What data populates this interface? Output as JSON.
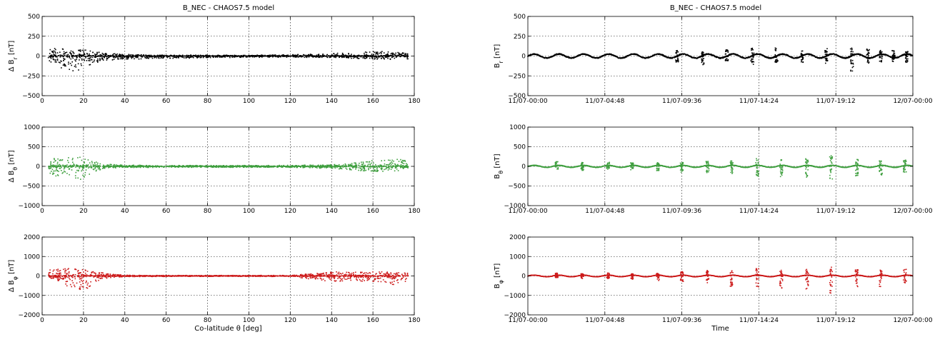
{
  "figure": {
    "left_title": "B_NEC - CHAOS7.5 model",
    "right_title": "B_NEC - CHAOS7.5 model"
  },
  "chart_data": [
    {
      "id": "dBr_vs_colat",
      "type": "scatter",
      "color": "#000000",
      "ylabel": "Δ B_r [nT]",
      "xlabel": "",
      "xlim": [
        0,
        180
      ],
      "ylim": [
        -500,
        500
      ],
      "xticks": [
        0,
        20,
        40,
        60,
        80,
        100,
        120,
        140,
        160,
        180
      ],
      "xticklabels": [
        "0",
        "20",
        "40",
        "60",
        "80",
        "100",
        "120",
        "140",
        "160",
        "180"
      ],
      "yticks": [
        -500,
        -250,
        0,
        250,
        500
      ],
      "yticklabels": [
        "−500",
        "−250",
        "0",
        "250",
        "500"
      ],
      "grid": true,
      "envelope_x": [
        3,
        6,
        10,
        15,
        20,
        25,
        30,
        40,
        60,
        80,
        100,
        120,
        140,
        150,
        160,
        170,
        177
      ],
      "envelope_hi": [
        80,
        100,
        110,
        105,
        90,
        60,
        40,
        20,
        10,
        10,
        10,
        15,
        30,
        50,
        60,
        55,
        30
      ],
      "envelope_lo": [
        -60,
        -110,
        -170,
        -200,
        -160,
        -100,
        -60,
        -40,
        -30,
        -20,
        -15,
        -15,
        -15,
        -30,
        -40,
        -50,
        -40
      ]
    },
    {
      "id": "dBtheta_vs_colat",
      "type": "scatter",
      "color": "#3f9f3f",
      "ylabel": "Δ B_θ [nT]",
      "xlabel": "",
      "xlim": [
        0,
        180
      ],
      "ylim": [
        -1000,
        1000
      ],
      "xticks": [
        0,
        20,
        40,
        60,
        80,
        100,
        120,
        140,
        160,
        180
      ],
      "xticklabels": [
        "0",
        "20",
        "40",
        "60",
        "80",
        "100",
        "120",
        "140",
        "160",
        "180"
      ],
      "yticks": [
        -1000,
        -500,
        0,
        500,
        1000
      ],
      "yticklabels": [
        "−1000",
        "−500",
        "0",
        "500",
        "1000"
      ],
      "grid": true,
      "envelope_x": [
        3,
        6,
        10,
        15,
        20,
        25,
        30,
        40,
        60,
        80,
        100,
        120,
        140,
        150,
        160,
        170,
        177
      ],
      "envelope_hi": [
        150,
        200,
        230,
        250,
        220,
        120,
        60,
        30,
        25,
        25,
        25,
        25,
        40,
        80,
        150,
        200,
        150
      ],
      "envelope_lo": [
        -200,
        -250,
        -250,
        -300,
        -350,
        -150,
        -50,
        -30,
        -25,
        -25,
        -25,
        -25,
        -50,
        -100,
        -150,
        -120,
        -80
      ]
    },
    {
      "id": "dBphi_vs_colat",
      "type": "scatter",
      "color": "#cc1a1a",
      "ylabel": "Δ B_φ [nT]",
      "xlabel": "Co-latitude θ [deg]",
      "xlim": [
        0,
        180
      ],
      "ylim": [
        -2000,
        2000
      ],
      "xticks": [
        0,
        20,
        40,
        60,
        80,
        100,
        120,
        140,
        160,
        180
      ],
      "xticklabels": [
        "0",
        "20",
        "40",
        "60",
        "80",
        "100",
        "120",
        "140",
        "160",
        "180"
      ],
      "yticks": [
        -2000,
        -1000,
        0,
        1000,
        2000
      ],
      "yticklabels": [
        "−2000",
        "−1000",
        "0",
        "1000",
        "2000"
      ],
      "grid": true,
      "envelope_x": [
        3,
        6,
        10,
        15,
        20,
        25,
        30,
        40,
        60,
        80,
        100,
        120,
        140,
        150,
        160,
        170,
        177
      ],
      "envelope_hi": [
        300,
        350,
        400,
        400,
        350,
        250,
        150,
        40,
        30,
        30,
        30,
        30,
        200,
        250,
        250,
        200,
        150
      ],
      "envelope_lo": [
        -100,
        -150,
        -400,
        -700,
        -850,
        -400,
        -150,
        -40,
        -30,
        -30,
        -30,
        -30,
        -300,
        -250,
        -300,
        -500,
        -400
      ]
    },
    {
      "id": "Br_vs_time",
      "type": "scatter",
      "color": "#000000",
      "ylabel": "B_r [nT]",
      "xlabel": "",
      "xlim": [
        0,
        24
      ],
      "ylim": [
        -500,
        500
      ],
      "xticks": [
        0,
        4.8,
        9.6,
        14.4,
        19.2,
        24
      ],
      "xticklabels": [
        "11/07-00:00",
        "11/07-04:48",
        "11/07-09:36",
        "11/07-14:24",
        "11/07-19:12",
        "12/07-00:00"
      ],
      "yticks": [
        -500,
        -250,
        0,
        250,
        500
      ],
      "yticklabels": [
        "−500",
        "−250",
        "0",
        "250",
        "500"
      ],
      "grid": true,
      "baseline_amplitude": 25,
      "orbit_period_hours": 1.55,
      "spike_times": [
        9.3,
        10.9,
        12.4,
        14.0,
        15.5,
        17.1,
        18.6,
        20.2,
        21.2,
        22.0,
        22.8,
        23.6
      ],
      "spike_hi": [
        70,
        60,
        90,
        100,
        110,
        100,
        110,
        100,
        90,
        70,
        80,
        60
      ],
      "spike_lo": [
        -90,
        -110,
        -60,
        -110,
        -90,
        -90,
        -100,
        -190,
        -90,
        -100,
        -70,
        -80
      ]
    },
    {
      "id": "Btheta_vs_time",
      "type": "scatter",
      "color": "#3f9f3f",
      "ylabel": "B_θ [nT]",
      "xlabel": "",
      "xlim": [
        0,
        24
      ],
      "ylim": [
        -1000,
        1000
      ],
      "xticks": [
        0,
        4.8,
        9.6,
        14.4,
        19.2,
        24
      ],
      "xticklabels": [
        "11/07-00:00",
        "11/07-04:48",
        "11/07-09:36",
        "11/07-14:24",
        "11/07-19:12",
        "12/07-00:00"
      ],
      "yticks": [
        -1000,
        -500,
        0,
        500,
        1000
      ],
      "yticklabels": [
        "−1000",
        "−500",
        "0",
        "500",
        "1000"
      ],
      "grid": true,
      "baseline_amplitude": 25,
      "orbit_period_hours": 1.55,
      "spike_times": [
        1.8,
        3.4,
        5.0,
        6.5,
        8.1,
        9.6,
        11.2,
        12.7,
        14.3,
        15.8,
        17.4,
        18.9,
        20.5,
        22.0,
        23.5
      ],
      "spike_hi": [
        120,
        100,
        110,
        90,
        100,
        120,
        130,
        150,
        200,
        220,
        200,
        280,
        180,
        150,
        160
      ],
      "spike_lo": [
        -90,
        -100,
        -80,
        -90,
        -110,
        -150,
        -180,
        -200,
        -250,
        -280,
        -300,
        -350,
        -250,
        -220,
        -150
      ]
    },
    {
      "id": "Bphi_vs_time",
      "type": "scatter",
      "color": "#cc1a1a",
      "ylabel": "B_φ [nT]",
      "xlabel": "Time",
      "xlim": [
        0,
        24
      ],
      "ylim": [
        -2000,
        2000
      ],
      "xticks": [
        0,
        4.8,
        9.6,
        14.4,
        19.2,
        24
      ],
      "xticklabels": [
        "11/07-00:00",
        "11/07-04:48",
        "11/07-09:36",
        "11/07-14:24",
        "11/07-19:12",
        "12/07-00:00"
      ],
      "yticks": [
        -2000,
        -1000,
        0,
        1000,
        2000
      ],
      "yticklabels": [
        "−2000",
        "−1000",
        "0",
        "1000",
        "2000"
      ],
      "grid": true,
      "baseline_amplitude": 40,
      "orbit_period_hours": 1.55,
      "spike_times": [
        1.8,
        3.4,
        5.0,
        6.5,
        8.1,
        9.6,
        11.2,
        12.7,
        14.3,
        15.8,
        17.4,
        18.9,
        20.5,
        22.0,
        23.5
      ],
      "spike_hi": [
        150,
        120,
        150,
        120,
        150,
        250,
        300,
        350,
        400,
        300,
        350,
        450,
        350,
        300,
        350
      ],
      "spike_lo": [
        -100,
        -150,
        -150,
        -200,
        -250,
        -300,
        -400,
        -550,
        -600,
        -700,
        -700,
        -900,
        -600,
        -550,
        -400
      ]
    }
  ]
}
